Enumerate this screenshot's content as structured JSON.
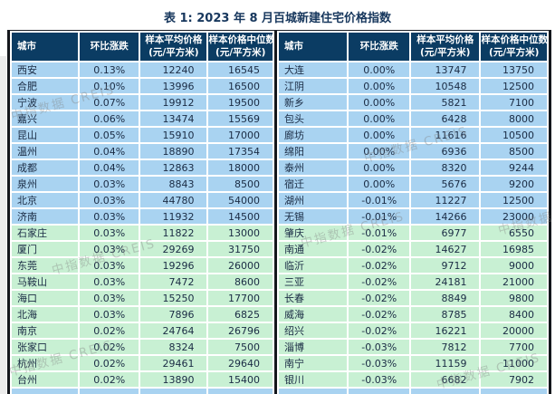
{
  "title": "表 1: 2023 年 8 月百城新建住宅价格指数",
  "watermark": {
    "text": "中指数据 CREIS"
  },
  "columns": [
    {
      "label": "城市",
      "sub": ""
    },
    {
      "label": "环比涨跌",
      "sub": ""
    },
    {
      "label": "样本平均价格",
      "sub": "(元/平方米)"
    },
    {
      "label": "样本价格中位数",
      "sub": "(元/平方米)"
    }
  ],
  "colors": {
    "header_bg": "#0b3c63",
    "blue_row": "#a9d3f1",
    "green_row": "#c8f0d3",
    "title_text": "#17375d",
    "cell_text": "#1a2b44",
    "outer_border": "#14171c"
  },
  "tables": [
    {
      "rows": [
        {
          "city": "西安",
          "change": "0.13%",
          "avg": "12240",
          "median": "16545",
          "tone": "blue"
        },
        {
          "city": "合肥",
          "change": "0.10%",
          "avg": "13996",
          "median": "16500",
          "tone": "blue"
        },
        {
          "city": "宁波",
          "change": "0.07%",
          "avg": "19912",
          "median": "19500",
          "tone": "blue"
        },
        {
          "city": "嘉兴",
          "change": "0.06%",
          "avg": "13474",
          "median": "15569",
          "tone": "blue"
        },
        {
          "city": "昆山",
          "change": "0.05%",
          "avg": "15910",
          "median": "17000",
          "tone": "blue"
        },
        {
          "city": "温州",
          "change": "0.04%",
          "avg": "18890",
          "median": "17354",
          "tone": "blue"
        },
        {
          "city": "成都",
          "change": "0.04%",
          "avg": "12863",
          "median": "18000",
          "tone": "blue"
        },
        {
          "city": "泉州",
          "change": "0.03%",
          "avg": "8843",
          "median": "8500",
          "tone": "blue"
        },
        {
          "city": "北京",
          "change": "0.03%",
          "avg": "44780",
          "median": "54000",
          "tone": "blue"
        },
        {
          "city": "济南",
          "change": "0.03%",
          "avg": "11932",
          "median": "14500",
          "tone": "blue"
        },
        {
          "city": "石家庄",
          "change": "0.03%",
          "avg": "11822",
          "median": "13000",
          "tone": "green"
        },
        {
          "city": "厦门",
          "change": "0.03%",
          "avg": "29269",
          "median": "31750",
          "tone": "green"
        },
        {
          "city": "东莞",
          "change": "0.03%",
          "avg": "19296",
          "median": "26000",
          "tone": "green"
        },
        {
          "city": "马鞍山",
          "change": "0.03%",
          "avg": "7472",
          "median": "8600",
          "tone": "green"
        },
        {
          "city": "海口",
          "change": "0.03%",
          "avg": "15250",
          "median": "17700",
          "tone": "green"
        },
        {
          "city": "北海",
          "change": "0.03%",
          "avg": "7896",
          "median": "6825",
          "tone": "green"
        },
        {
          "city": "南京",
          "change": "0.02%",
          "avg": "24764",
          "median": "26796",
          "tone": "green"
        },
        {
          "city": "张家口",
          "change": "0.02%",
          "avg": "8324",
          "median": "7500",
          "tone": "green"
        },
        {
          "city": "杭州",
          "change": "0.02%",
          "avg": "29461",
          "median": "29640",
          "tone": "green"
        },
        {
          "city": "台州",
          "change": "0.02%",
          "avg": "13890",
          "median": "15400",
          "tone": "green"
        }
      ]
    },
    {
      "rows": [
        {
          "city": "大连",
          "change": "0.00%",
          "avg": "13747",
          "median": "13750",
          "tone": "blue"
        },
        {
          "city": "江阴",
          "change": "0.00%",
          "avg": "10548",
          "median": "12500",
          "tone": "blue"
        },
        {
          "city": "新乡",
          "change": "0.00%",
          "avg": "5821",
          "median": "7100",
          "tone": "blue"
        },
        {
          "city": "包头",
          "change": "0.00%",
          "avg": "6428",
          "median": "8000",
          "tone": "blue"
        },
        {
          "city": "廊坊",
          "change": "0.00%",
          "avg": "11616",
          "median": "10500",
          "tone": "blue"
        },
        {
          "city": "绵阳",
          "change": "0.00%",
          "avg": "6936",
          "median": "8500",
          "tone": "blue"
        },
        {
          "city": "泰州",
          "change": "0.00%",
          "avg": "8320",
          "median": "9244",
          "tone": "blue"
        },
        {
          "city": "宿迁",
          "change": "0.00%",
          "avg": "5676",
          "median": "9200",
          "tone": "blue"
        },
        {
          "city": "湖州",
          "change": "-0.01%",
          "avg": "11227",
          "median": "12500",
          "tone": "blue"
        },
        {
          "city": "无锡",
          "change": "-0.01%",
          "avg": "14266",
          "median": "23000",
          "tone": "blue"
        },
        {
          "city": "肇庆",
          "change": "-0.01%",
          "avg": "6977",
          "median": "6550",
          "tone": "green"
        },
        {
          "city": "南通",
          "change": "-0.02%",
          "avg": "14627",
          "median": "16985",
          "tone": "green"
        },
        {
          "city": "临沂",
          "change": "-0.02%",
          "avg": "9712",
          "median": "9000",
          "tone": "green"
        },
        {
          "city": "三亚",
          "change": "-0.02%",
          "avg": "24181",
          "median": "21000",
          "tone": "green"
        },
        {
          "city": "长春",
          "change": "-0.02%",
          "avg": "8849",
          "median": "9800",
          "tone": "green"
        },
        {
          "city": "威海",
          "change": "-0.02%",
          "avg": "8785",
          "median": "8400",
          "tone": "green"
        },
        {
          "city": "绍兴",
          "change": "-0.02%",
          "avg": "16221",
          "median": "20000",
          "tone": "green"
        },
        {
          "city": "淄博",
          "change": "-0.03%",
          "avg": "7812",
          "median": "7700",
          "tone": "green"
        },
        {
          "city": "南宁",
          "change": "-0.03%",
          "avg": "11159",
          "median": "11000",
          "tone": "green"
        },
        {
          "city": "银川",
          "change": "-0.03%",
          "avg": "6682",
          "median": "7902",
          "tone": "green"
        }
      ]
    }
  ]
}
